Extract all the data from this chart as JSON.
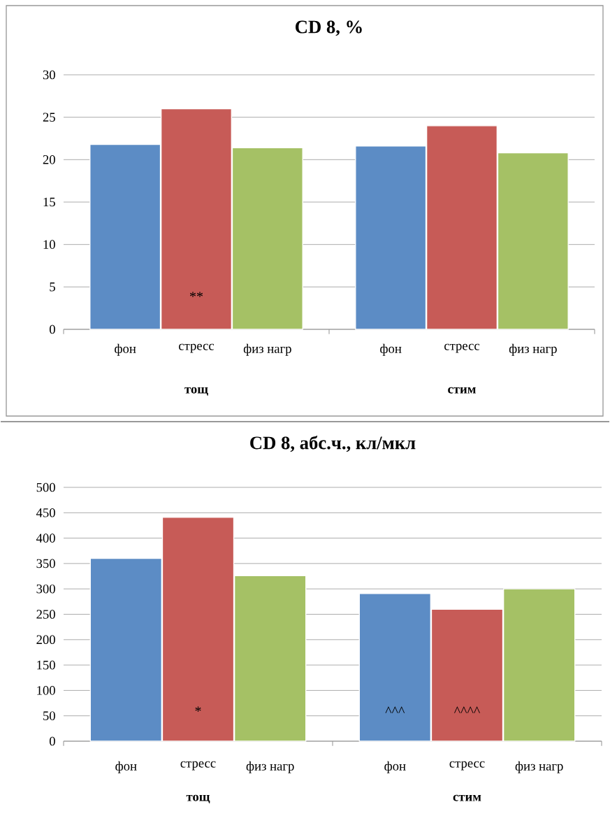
{
  "chart_data": [
    {
      "type": "bar",
      "title": "CD 8, %",
      "categories": [
        "тощ",
        "стим"
      ],
      "series": [
        {
          "name": "фон",
          "color": "#5c8cc5",
          "values": [
            21.8,
            21.6
          ]
        },
        {
          "name": "стресс",
          "color": "#c75b57",
          "values": [
            26.0,
            24.0
          ],
          "value_labels": [
            "**",
            null
          ]
        },
        {
          "name": "физ нагр",
          "color": "#a5c165",
          "values": [
            21.4,
            20.8
          ]
        }
      ],
      "ylim": [
        0,
        30
      ],
      "yticks": [
        0,
        5,
        10,
        15,
        20,
        25,
        30
      ],
      "grid": "y"
    },
    {
      "type": "bar",
      "title": "CD 8, абс.ч., кл/мкл",
      "categories": [
        "тощ",
        "стим"
      ],
      "series": [
        {
          "name": "фон",
          "color": "#5c8cc5",
          "values": [
            360,
            291
          ],
          "value_labels": [
            null,
            "^^^"
          ]
        },
        {
          "name": "стресс",
          "color": "#c75b57",
          "values": [
            441,
            260
          ],
          "value_labels": [
            "*",
            "^^^^"
          ]
        },
        {
          "name": "физ нагр",
          "color": "#a5c165",
          "values": [
            326,
            300
          ]
        }
      ],
      "ylim": [
        0,
        500
      ],
      "yticks": [
        0,
        50,
        100,
        150,
        200,
        250,
        300,
        350,
        400,
        450,
        500
      ],
      "grid": "y"
    }
  ]
}
